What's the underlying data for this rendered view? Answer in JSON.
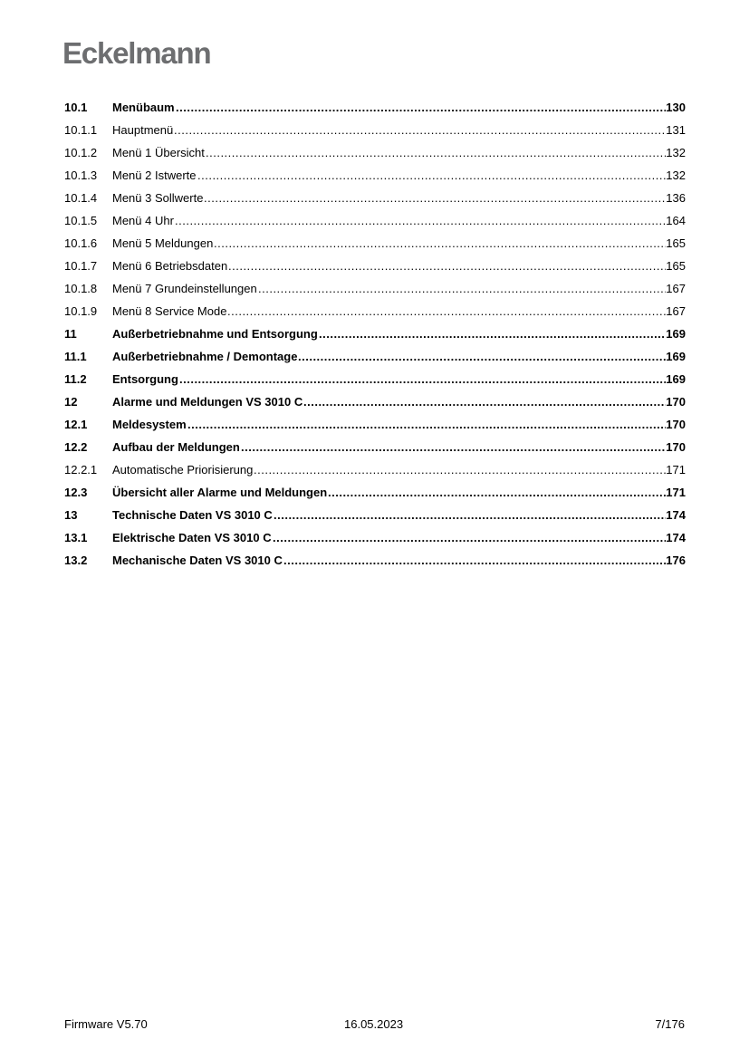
{
  "header": {
    "logo": "Eckelmann"
  },
  "toc": [
    {
      "num": "10.1",
      "title": "Menübaum",
      "page": "130",
      "bold": true
    },
    {
      "num": "10.1.1",
      "title": "Hauptmenü",
      "page": "131",
      "bold": false
    },
    {
      "num": "10.1.2",
      "title": "Menü 1 Übersicht",
      "page": "132",
      "bold": false
    },
    {
      "num": "10.1.3",
      "title": "Menü 2 Istwerte",
      "page": "132",
      "bold": false
    },
    {
      "num": "10.1.4",
      "title": "Menü 3 Sollwerte",
      "page": "136",
      "bold": false
    },
    {
      "num": "10.1.5",
      "title": "Menü 4 Uhr",
      "page": "164",
      "bold": false
    },
    {
      "num": "10.1.6",
      "title": "Menü 5 Meldungen",
      "page": "165",
      "bold": false
    },
    {
      "num": "10.1.7",
      "title": "Menü 6 Betriebsdaten",
      "page": "165",
      "bold": false
    },
    {
      "num": "10.1.8",
      "title": "Menü 7 Grundeinstellungen",
      "page": "167",
      "bold": false
    },
    {
      "num": "10.1.9",
      "title": "Menü 8 Service Mode",
      "page": "167",
      "bold": false
    },
    {
      "num": "11",
      "title": "Außerbetriebnahme und Entsorgung",
      "page": "169",
      "bold": true
    },
    {
      "num": "11.1",
      "title": "Außerbetriebnahme / Demontage",
      "page": "169",
      "bold": true
    },
    {
      "num": "11.2",
      "title": "Entsorgung",
      "page": "169",
      "bold": true
    },
    {
      "num": "12",
      "title": "Alarme und Meldungen VS 3010 C",
      "page": "170",
      "bold": true
    },
    {
      "num": "12.1",
      "title": "Meldesystem",
      "page": "170",
      "bold": true
    },
    {
      "num": "12.2",
      "title": "Aufbau der Meldungen",
      "page": "170",
      "bold": true
    },
    {
      "num": "12.2.1",
      "title": "Automatische Priorisierung",
      "page": "171",
      "bold": false
    },
    {
      "num": "12.3",
      "title": "Übersicht aller Alarme und Meldungen",
      "page": "171",
      "bold": true
    },
    {
      "num": "13",
      "title": "Technische Daten VS 3010 C",
      "page": "174",
      "bold": true
    },
    {
      "num": "13.1",
      "title": "Elektrische Daten VS 3010 C",
      "page": "174",
      "bold": true
    },
    {
      "num": "13.2",
      "title": "Mechanische Daten VS 3010 C",
      "page": "176",
      "bold": true
    }
  ],
  "footer": {
    "left": "Firmware V5.70",
    "center": "16.05.2023",
    "right": "7/176"
  }
}
